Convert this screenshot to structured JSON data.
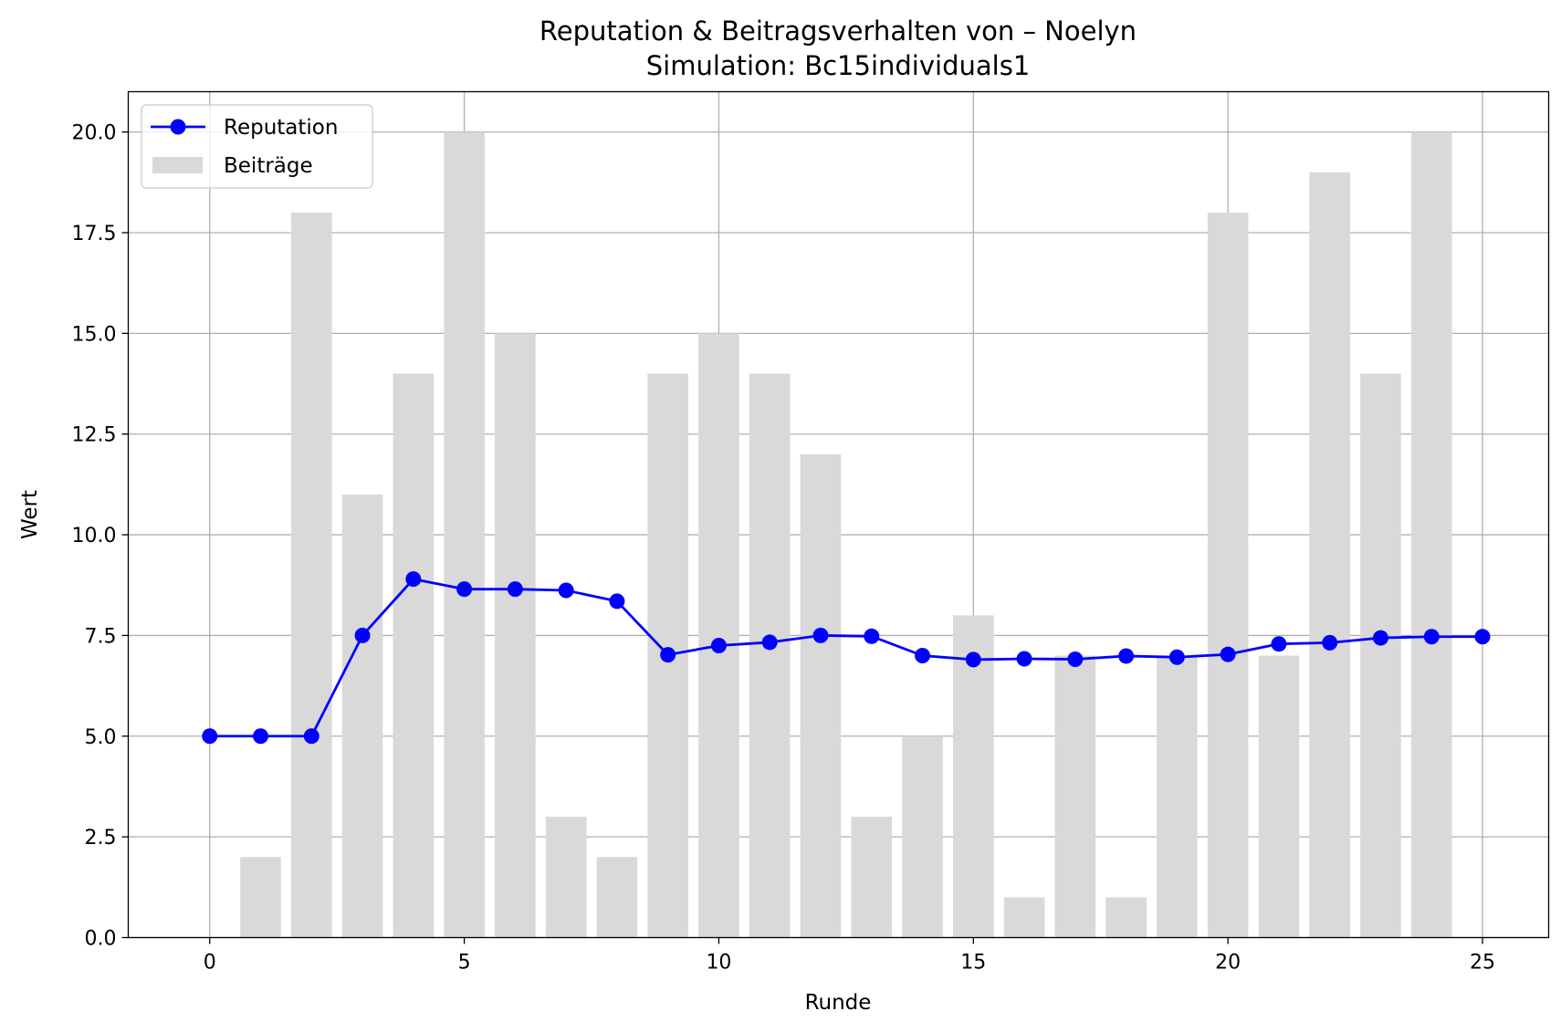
{
  "chart_data": {
    "type": "bar",
    "title": "Reputation & Beitragsverhalten von – Noelyn",
    "subtitle": "Simulation: Bc15individuals1",
    "xlabel": "Runde",
    "ylabel": "Wert",
    "xlim": [
      -1.6,
      26.3
    ],
    "ylim": [
      0,
      21
    ],
    "x_ticks": [
      0,
      5,
      10,
      15,
      20,
      25
    ],
    "x_tick_labels": [
      "0",
      "5",
      "10",
      "15",
      "20",
      "25"
    ],
    "y_ticks": [
      0,
      2.5,
      5,
      7.5,
      10,
      12.5,
      15,
      17.5,
      20
    ],
    "y_tick_labels": [
      "0.0",
      "2.5",
      "5.0",
      "7.5",
      "10.0",
      "12.5",
      "15.0",
      "17.5",
      "20.0"
    ],
    "grid": true,
    "legend_position": "top-left",
    "series": [
      {
        "name": "Reputation",
        "kind": "line",
        "color": "#0000ff",
        "marker": "circle",
        "x": [
          0,
          1,
          2,
          3,
          4,
          5,
          6,
          7,
          8,
          9,
          10,
          11,
          12,
          13,
          14,
          15,
          16,
          17,
          18,
          19,
          20,
          21,
          22,
          23,
          24,
          25
        ],
        "values": [
          5.0,
          5.0,
          5.0,
          7.5,
          8.9,
          8.65,
          8.65,
          8.62,
          8.35,
          7.02,
          7.25,
          7.33,
          7.5,
          7.48,
          7.0,
          6.9,
          6.92,
          6.91,
          6.99,
          6.96,
          7.03,
          7.29,
          7.32,
          7.44,
          7.47,
          7.47
        ]
      },
      {
        "name": "Beiträge",
        "kind": "bar",
        "color": "#d9d9d9",
        "x": [
          1,
          2,
          3,
          4,
          5,
          6,
          7,
          8,
          9,
          10,
          11,
          12,
          13,
          14,
          15,
          16,
          17,
          18,
          19,
          20,
          21,
          22,
          23,
          24
        ],
        "values": [
          2,
          18,
          11,
          14,
          20,
          15,
          3,
          2,
          14,
          15,
          14,
          12,
          3,
          5,
          8,
          1,
          7,
          1,
          7,
          18,
          7,
          19,
          14,
          20
        ]
      }
    ]
  }
}
